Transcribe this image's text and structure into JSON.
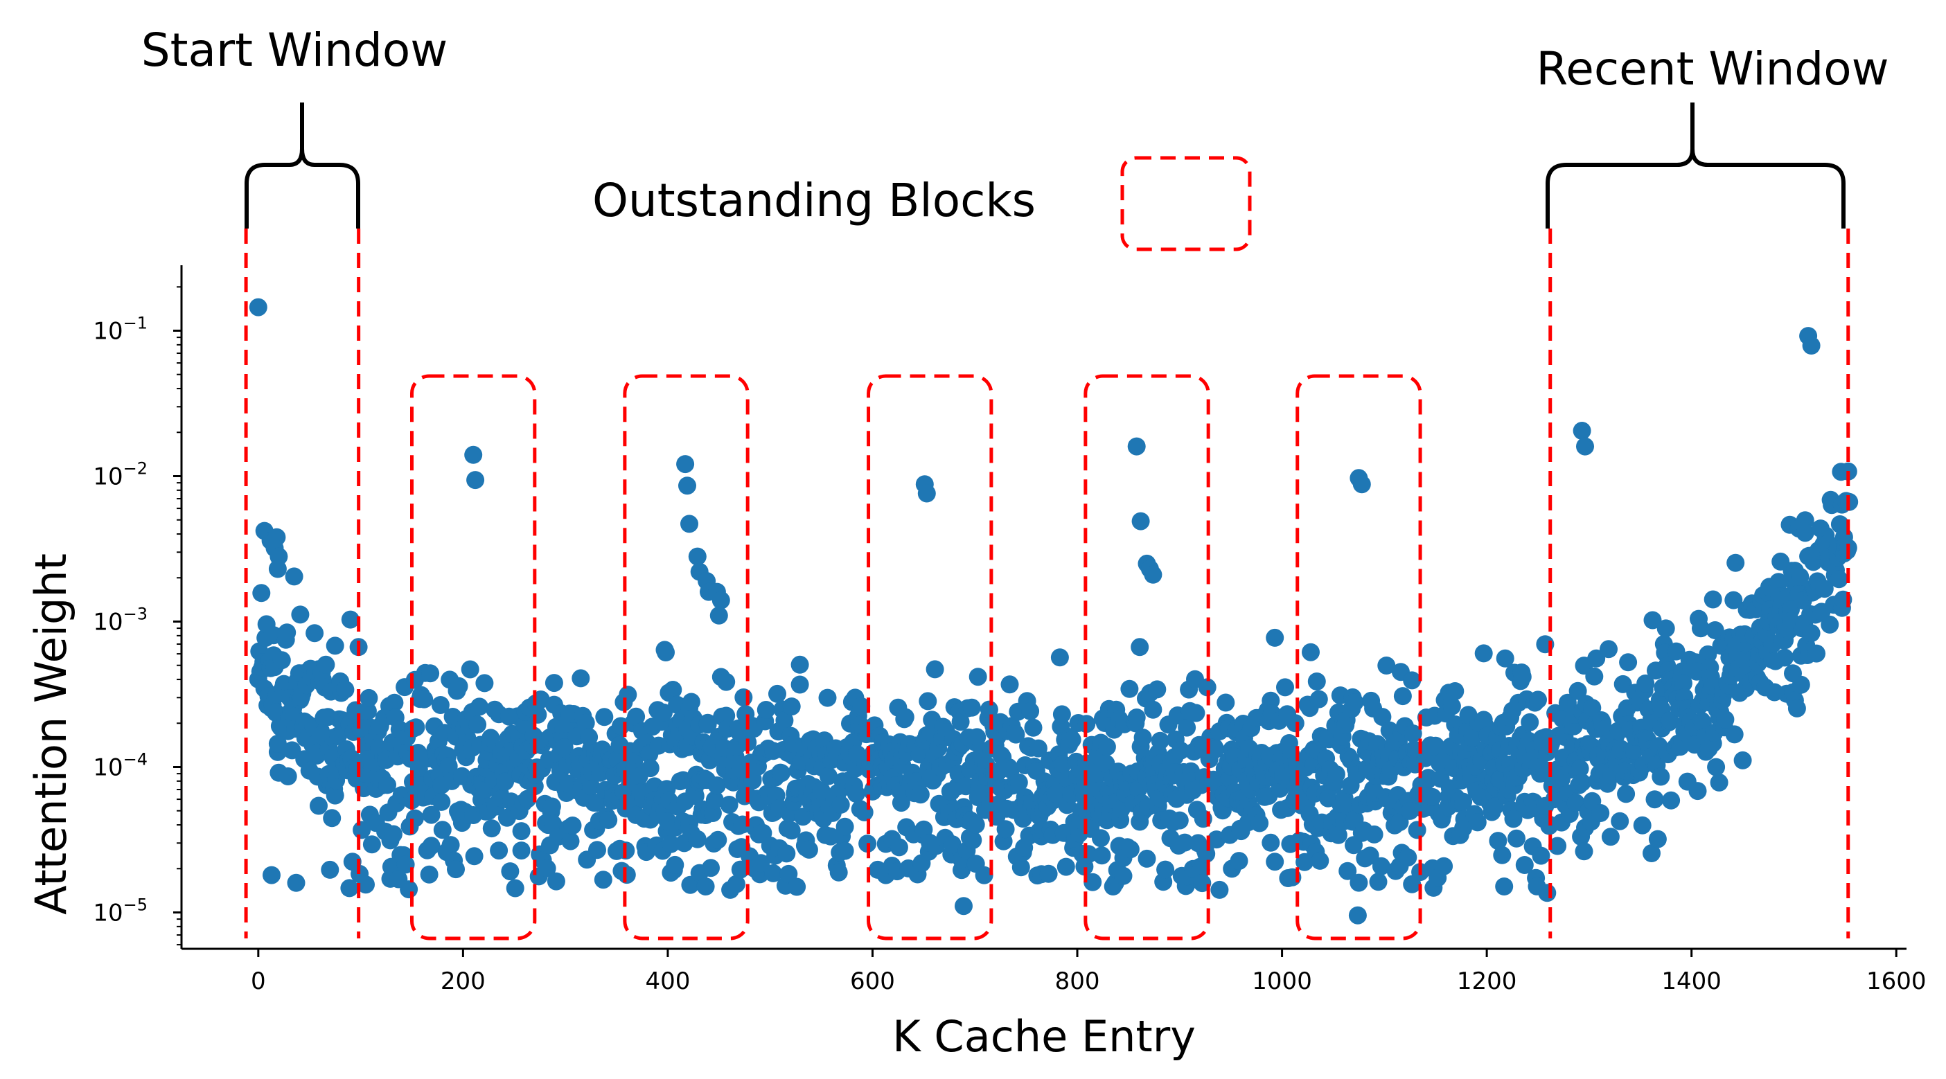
{
  "chart_data": {
    "type": "scatter",
    "title": "",
    "xlabel": "K Cache Entry",
    "ylabel": "Attention Weight",
    "xlim": [
      -75,
      1610
    ],
    "ylim_log10": [
      -5.25,
      -0.55
    ],
    "yscale": "log",
    "grid": false,
    "x_ticks": [
      0,
      200,
      400,
      600,
      800,
      1000,
      1200,
      1400,
      1600
    ],
    "y_ticks": [
      {
        "exp": -5,
        "label": "10",
        "sup": "−5"
      },
      {
        "exp": -4,
        "label": "10",
        "sup": "−4"
      },
      {
        "exp": -3,
        "label": "10",
        "sup": "−3"
      },
      {
        "exp": -2,
        "label": "10",
        "sup": "−2"
      },
      {
        "exp": -1,
        "label": "10",
        "sup": "−1"
      }
    ],
    "point_color": "#1f77b4",
    "highlight_color": "#ff0000",
    "annotations": {
      "start_window": {
        "label": "Start Window",
        "x_range": [
          -12,
          98
        ]
      },
      "recent_window": {
        "label": "Recent Window",
        "x_range": [
          1262,
          1553
        ]
      },
      "outstanding_blocks": {
        "label": "Outstanding Blocks",
        "blocks": [
          [
            150,
            270
          ],
          [
            358,
            478
          ],
          [
            596,
            716
          ],
          [
            808,
            928
          ],
          [
            1015,
            1135
          ]
        ]
      }
    },
    "outstanding_points": [
      [
        0,
        0.145
      ],
      [
        6,
        0.0042
      ],
      [
        12,
        0.0036
      ],
      [
        18,
        0.0038
      ],
      [
        16,
        0.0032
      ],
      [
        20,
        0.0028
      ],
      [
        19,
        0.0023
      ],
      [
        210,
        0.014
      ],
      [
        212,
        0.0094
      ],
      [
        417,
        0.0121
      ],
      [
        419,
        0.0086
      ],
      [
        421,
        0.0047
      ],
      [
        429,
        0.0028
      ],
      [
        431,
        0.0022
      ],
      [
        438,
        0.0019
      ],
      [
        440,
        0.0016
      ],
      [
        448,
        0.0016
      ],
      [
        452,
        0.0014
      ],
      [
        450,
        0.0011
      ],
      [
        651,
        0.0088
      ],
      [
        653,
        0.0076
      ],
      [
        858,
        0.016
      ],
      [
        862,
        0.0049
      ],
      [
        868,
        0.0025
      ],
      [
        871,
        0.0023
      ],
      [
        874,
        0.0021
      ],
      [
        1075,
        0.0097
      ],
      [
        1078,
        0.0088
      ],
      [
        1293,
        0.0205
      ],
      [
        1296,
        0.016
      ],
      [
        1514,
        0.092
      ],
      [
        1517,
        0.079
      ]
    ],
    "series": [
      {
        "name": "",
        "description": "bulk attention weights per K cache entry, approx. 1e-5 to 1e-3 with U-shaped trend"
      }
    ]
  }
}
